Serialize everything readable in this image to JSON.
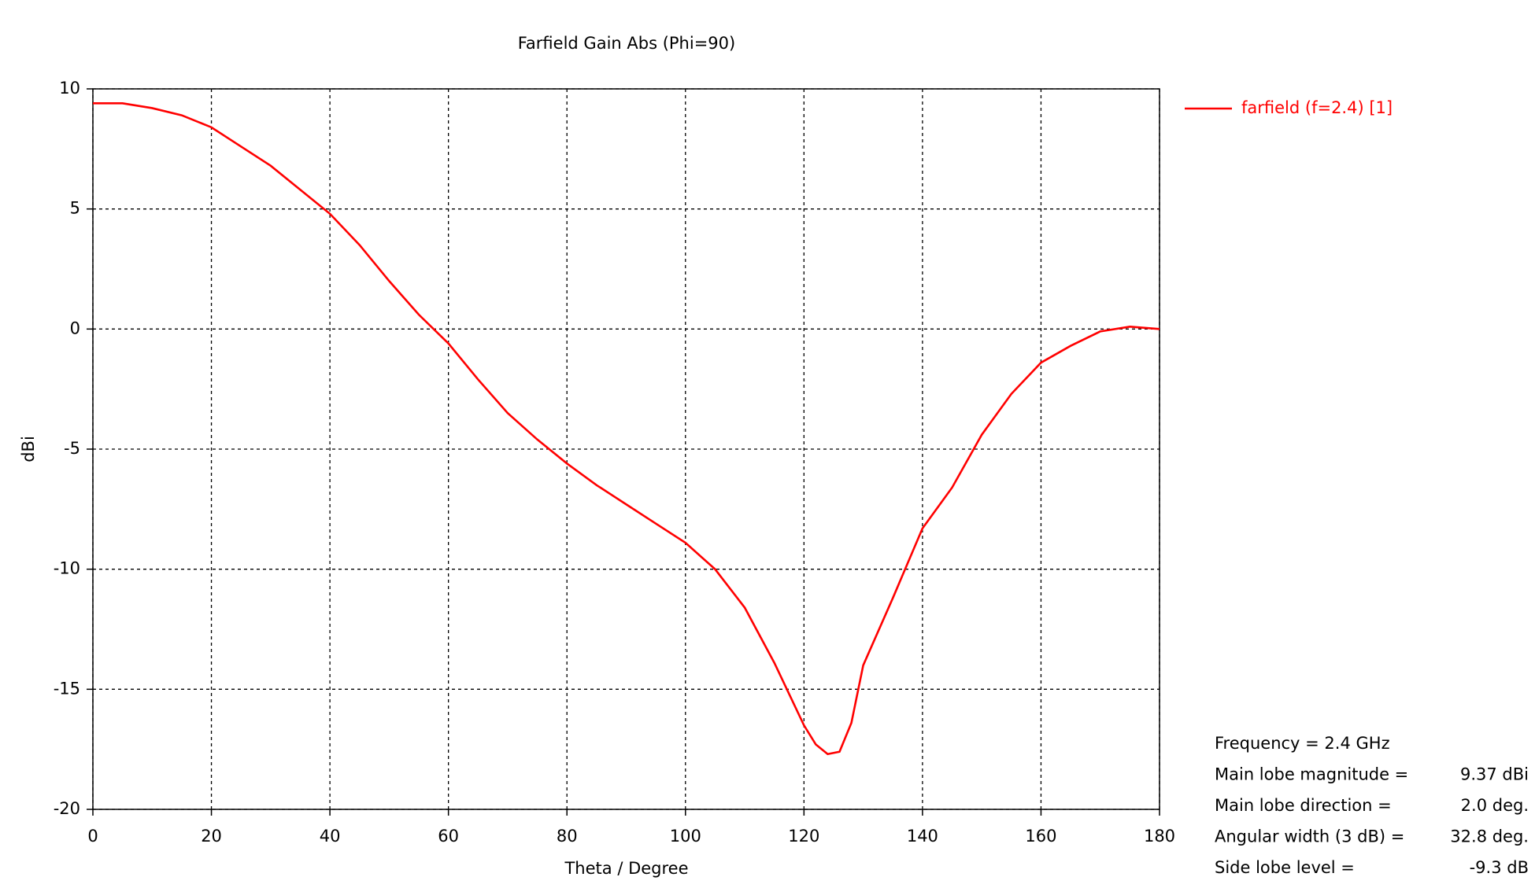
{
  "chart_data": {
    "type": "line",
    "title": "Farfield Gain Abs (Phi=90)",
    "x_label": "Theta / Degree",
    "y_label": "dBi",
    "x": [
      0,
      5,
      10,
      15,
      20,
      25,
      30,
      35,
      40,
      45,
      50,
      55,
      60,
      65,
      70,
      75,
      80,
      85,
      90,
      95,
      100,
      105,
      110,
      115,
      120,
      122,
      124,
      126,
      128,
      130,
      135,
      140,
      145,
      150,
      155,
      160,
      165,
      170,
      175,
      180
    ],
    "series": [
      {
        "name": "farfield (f=2.4) [1]",
        "color": "#ff0000",
        "values": [
          9.4,
          9.4,
          9.2,
          8.9,
          8.4,
          7.6,
          6.8,
          5.8,
          4.8,
          3.5,
          2.0,
          0.6,
          -0.6,
          -2.1,
          -3.5,
          -4.6,
          -5.6,
          -6.5,
          -7.3,
          -8.1,
          -8.9,
          -10.0,
          -11.6,
          -13.9,
          -16.5,
          -17.3,
          -17.7,
          -17.6,
          -16.4,
          -14.0,
          -11.2,
          -8.3,
          -6.6,
          -4.4,
          -2.7,
          -1.4,
          -0.7,
          -0.1,
          0.1,
          0.0
        ]
      }
    ],
    "xlim": [
      0,
      180
    ],
    "xticks": [
      0,
      20,
      40,
      60,
      80,
      100,
      120,
      140,
      160,
      180
    ],
    "ylim": [
      -20,
      10
    ],
    "yticks": [
      -20,
      -15,
      -10,
      -5,
      0,
      5,
      10
    ],
    "grid": true,
    "legend": "top-right",
    "annotations": [
      {
        "label": "Frequency = 2.4 GHz"
      },
      {
        "label": "Main lobe magnitude =",
        "value": "9.37 dBi"
      },
      {
        "label": "Main lobe direction =",
        "value": "2.0 deg."
      },
      {
        "label": "Angular width (3 dB) =",
        "value": "32.8 deg."
      },
      {
        "label": "Side lobe level =",
        "value": "-9.3 dB"
      }
    ]
  }
}
